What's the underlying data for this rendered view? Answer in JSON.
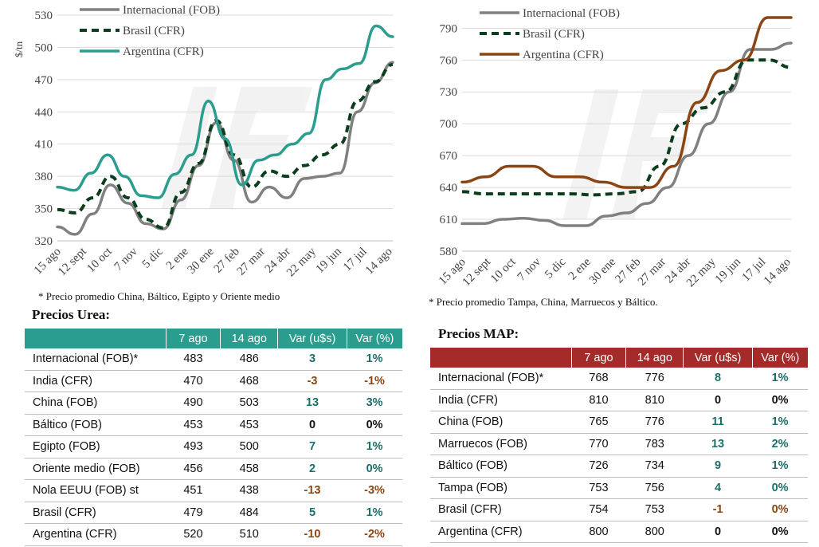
{
  "chart_data": [
    {
      "type": "line",
      "ylabel": "$/tn",
      "ylim": [
        320,
        530
      ],
      "yticks": [
        320,
        350,
        380,
        410,
        440,
        470,
        500,
        530
      ],
      "xticks": [
        "15 ago",
        "12 sept",
        "10 oct",
        "7 nov",
        "5 dic",
        "2 ene",
        "30 ene",
        "27 feb",
        "27 mar",
        "24 abr",
        "22 may",
        "19 jun",
        "17 jul",
        "14 ago"
      ],
      "legend_position": "top-left",
      "series": [
        {
          "name": "Internacional (FOB)",
          "color": "#808080",
          "style": "solid",
          "values": [
            333,
            326,
            345,
            372,
            355,
            336,
            331,
            358,
            390,
            430,
            395,
            356,
            370,
            360,
            378,
            380,
            383,
            440,
            467,
            486
          ]
        },
        {
          "name": "Brasil (CFR)",
          "color": "#0b3d1f",
          "style": "dashed",
          "values": [
            349,
            346,
            360,
            380,
            360,
            340,
            332,
            365,
            392,
            432,
            400,
            370,
            385,
            380,
            390,
            400,
            410,
            450,
            468,
            484
          ]
        },
        {
          "name": "Argentina (CFR)",
          "color": "#2a9d8f",
          "style": "solid",
          "values": [
            370,
            367,
            383,
            400,
            380,
            362,
            360,
            382,
            400,
            450,
            415,
            372,
            395,
            400,
            410,
            420,
            470,
            480,
            485,
            520,
            510
          ]
        }
      ]
    },
    {
      "type": "line",
      "ylim": [
        580,
        800
      ],
      "yticks": [
        580,
        610,
        640,
        670,
        700,
        730,
        760,
        790
      ],
      "xticks": [
        "15 ago",
        "12 sept",
        "10 oct",
        "7 nov",
        "5 dic",
        "2 ene",
        "30 ene",
        "27 feb",
        "27 mar",
        "24 abr",
        "22 may",
        "19 jun",
        "17 jul",
        "14 ago"
      ],
      "legend_position": "top-left",
      "series": [
        {
          "name": "Internacional (FOB)",
          "color": "#808080",
          "style": "solid",
          "values": [
            606,
            606,
            610,
            611,
            609,
            604,
            604,
            613,
            616,
            625,
            640,
            670,
            700,
            730,
            770,
            770,
            776
          ]
        },
        {
          "name": "Brasil (CFR)",
          "color": "#0b3d1f",
          "style": "dashed",
          "values": [
            636,
            634,
            634,
            634,
            634,
            634,
            633,
            634,
            636,
            660,
            700,
            715,
            730,
            760,
            760,
            753
          ]
        },
        {
          "name": "Argentina (CFR)",
          "color": "#8b4513",
          "style": "solid",
          "values": [
            645,
            650,
            660,
            660,
            650,
            650,
            645,
            640,
            640,
            660,
            720,
            750,
            760,
            800,
            800
          ]
        }
      ]
    }
  ],
  "notes": {
    "left": "* Precio promedio China, Báltico, Egipto y Oriente medio",
    "right": "* Precio promedio Tampa, China, Marruecos y Báltico."
  },
  "urea": {
    "title": "Precios Urea:",
    "header_color": "#2a9d8f",
    "headers": [
      "",
      "7 ago",
      "14 ago",
      "Var (u$s)",
      "Var (%)"
    ],
    "rows": [
      {
        "name": "Internacional (FOB)*",
        "a": "483",
        "b": "486",
        "v": "3",
        "p": "1%",
        "sign": "pos"
      },
      {
        "name": "India (CFR)",
        "a": "470",
        "b": "468",
        "v": "-3",
        "p": "-1%",
        "sign": "neg"
      },
      {
        "name": "China (FOB)",
        "a": "490",
        "b": "503",
        "v": "13",
        "p": "3%",
        "sign": "pos"
      },
      {
        "name": "Báltico (FOB)",
        "a": "453",
        "b": "453",
        "v": "0",
        "p": "0%",
        "sign": "zero"
      },
      {
        "name": "Egipto (FOB)",
        "a": "493",
        "b": "500",
        "v": "7",
        "p": "1%",
        "sign": "pos"
      },
      {
        "name": "Oriente medio (FOB)",
        "a": "456",
        "b": "458",
        "v": "2",
        "p": "0%",
        "sign": "pos"
      },
      {
        "name": "Nola EEUU (FOB) st",
        "a": "451",
        "b": "438",
        "v": "-13",
        "p": "-3%",
        "sign": "neg"
      },
      {
        "name": "Brasil (CFR)",
        "a": "479",
        "b": "484",
        "v": "5",
        "p": "1%",
        "sign": "pos"
      },
      {
        "name": "Argentina (CFR)",
        "a": "520",
        "b": "510",
        "v": "-10",
        "p": "-2%",
        "sign": "neg"
      }
    ]
  },
  "map": {
    "title": "Precios MAP:",
    "header_color": "#a52a2a",
    "headers": [
      "",
      "7 ago",
      "14 ago",
      "Var (u$s)",
      "Var (%)"
    ],
    "rows": [
      {
        "name": "Internacional (FOB)*",
        "a": "768",
        "b": "776",
        "v": "8",
        "p": "1%",
        "sign": "pos"
      },
      {
        "name": "India (CFR)",
        "a": "810",
        "b": "810",
        "v": "0",
        "p": "0%",
        "sign": "zero"
      },
      {
        "name": "China (FOB)",
        "a": "765",
        "b": "776",
        "v": "11",
        "p": "1%",
        "sign": "pos"
      },
      {
        "name": "Marruecos (FOB)",
        "a": "770",
        "b": "783",
        "v": "13",
        "p": "2%",
        "sign": "pos"
      },
      {
        "name": "Báltico (FOB)",
        "a": "726",
        "b": "734",
        "v": "9",
        "p": "1%",
        "sign": "pos"
      },
      {
        "name": "Tampa (FOB)",
        "a": "753",
        "b": "756",
        "v": "4",
        "p": "0%",
        "sign": "pos"
      },
      {
        "name": "Brasil (CFR)",
        "a": "754",
        "b": "753",
        "v": "-1",
        "p": "0%",
        "sign": "neg"
      },
      {
        "name": "Argentina (CFR)",
        "a": "800",
        "b": "800",
        "v": "0",
        "p": "0%",
        "sign": "zero"
      }
    ]
  }
}
